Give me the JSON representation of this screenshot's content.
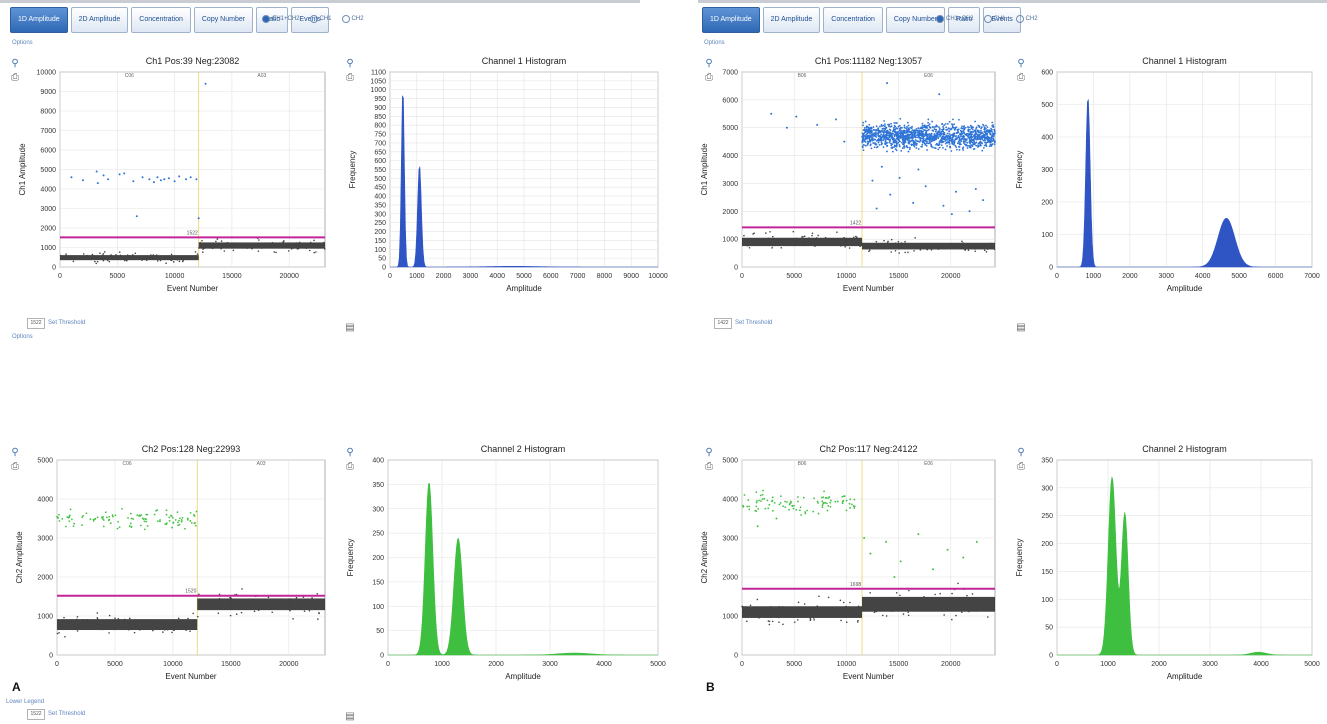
{
  "panels": [
    {
      "letter": "A",
      "tabs": [
        "1D Amplitude",
        "2D Amplitude",
        "Concentration",
        "Copy Number",
        "Ratio",
        "Events"
      ],
      "active_tab": 0,
      "channel_options": [
        "CH1+CH2",
        "CH1",
        "CH2"
      ],
      "options_link": "Options",
      "threshold_value": "1522",
      "threshold_button": "Set Threshold",
      "lower_links": [
        "Options",
        "Lower Legend"
      ]
    },
    {
      "letter": "B",
      "tabs": [
        "1D Amplitude",
        "2D Amplitude",
        "Concentration",
        "Copy Number",
        "Ratio",
        "Events"
      ],
      "active_tab": 0,
      "channel_options": [
        "CH1+CH2",
        "CH1",
        "CH2"
      ],
      "options_link": "Options",
      "threshold_value": "1422",
      "threshold_button": "Set Threshold",
      "lower_links": []
    }
  ],
  "chart_data": [
    {
      "id": "A-ch1-scatter",
      "type": "scatter",
      "title": "Ch1 Pos:39 Neg:23082",
      "xlabel": "Event Number",
      "ylabel": "Ch1 Amplitude",
      "xlim": [
        0,
        23121
      ],
      "ylim": [
        0,
        10000
      ],
      "xticks": [
        0,
        5000,
        10000,
        15000,
        20000
      ],
      "yticks": [
        0,
        1000,
        2000,
        3000,
        4000,
        5000,
        6000,
        7000,
        8000,
        9000,
        10000
      ],
      "well_labels": [
        "C06",
        "A03"
      ],
      "well_boundary": 12100,
      "threshold": 1522,
      "threshold_label": "1522",
      "series": [
        {
          "kind": "negative",
          "color": "#111111",
          "segments": [
            {
              "x": [
                0,
                12100
              ],
              "y_center": 480,
              "y_spread": 130
            },
            {
              "x": [
                12100,
                23121
              ],
              "y_center": 1100,
              "y_spread": 160
            }
          ]
        },
        {
          "kind": "positive",
          "color": "#2e74d6",
          "points": [
            [
              1000,
              4600
            ],
            [
              2000,
              4450
            ],
            [
              3200,
              4900
            ],
            [
              3800,
              4700
            ],
            [
              4200,
              4500
            ],
            [
              5200,
              4750
            ],
            [
              5600,
              4800
            ],
            [
              6400,
              4400
            ],
            [
              6700,
              2600
            ],
            [
              7800,
              4500
            ],
            [
              8200,
              4350
            ],
            [
              8500,
              4600
            ],
            [
              8800,
              4450
            ],
            [
              9500,
              4550
            ],
            [
              10000,
              4400
            ],
            [
              10400,
              4650
            ],
            [
              11000,
              4500
            ],
            [
              11400,
              4600
            ],
            [
              11900,
              4500
            ],
            [
              12100,
              2500
            ],
            [
              12700,
              9400
            ],
            [
              3300,
              4300
            ],
            [
              9100,
              4500
            ],
            [
              7200,
              4600
            ]
          ]
        }
      ]
    },
    {
      "id": "A-ch1-hist",
      "type": "area",
      "title": "Channel 1 Histogram",
      "xlabel": "Amplitude",
      "ylabel": "Frequency",
      "xlim": [
        0,
        10000
      ],
      "ylim": [
        0,
        1100
      ],
      "xticks": [
        0,
        1000,
        2000,
        3000,
        4000,
        5000,
        6000,
        7000,
        8000,
        9000,
        10000
      ],
      "yticks": [
        0,
        50,
        100,
        150,
        200,
        250,
        300,
        350,
        400,
        450,
        500,
        550,
        600,
        650,
        700,
        750,
        800,
        850,
        900,
        950,
        1000,
        1050,
        1100
      ],
      "color": "#2f55c5",
      "peaks": [
        {
          "center": 480,
          "height": 1020,
          "sigma": 55
        },
        {
          "center": 1100,
          "height": 580,
          "sigma": 70
        },
        {
          "center": 4600,
          "height": 4,
          "sigma": 900
        }
      ]
    },
    {
      "id": "A-ch2-scatter",
      "type": "scatter",
      "title": "Ch2 Pos:128 Neg:22993",
      "xlabel": "Event Number",
      "ylabel": "Ch2 Amplitude",
      "xlim": [
        0,
        23121
      ],
      "ylim": [
        0,
        5000
      ],
      "xticks": [
        0,
        5000,
        10000,
        15000,
        20000
      ],
      "yticks": [
        0,
        1000,
        2000,
        3000,
        4000,
        5000
      ],
      "well_labels": [
        "C06",
        "A03"
      ],
      "well_boundary": 12100,
      "threshold": 1520,
      "threshold_label": "1520",
      "series": [
        {
          "kind": "negative",
          "color": "#111111",
          "segments": [
            {
              "x": [
                0,
                12100
              ],
              "y_center": 780,
              "y_spread": 140
            },
            {
              "x": [
                12100,
                23121
              ],
              "y_center": 1300,
              "y_spread": 150
            }
          ]
        },
        {
          "kind": "positive",
          "color": "#44c244",
          "band": {
            "x": [
              0,
              12100
            ],
            "y_center": 3480,
            "y_spread": 170,
            "count": 110
          }
        }
      ]
    },
    {
      "id": "A-ch2-hist",
      "type": "area",
      "title": "Channel 2 Histogram",
      "xlabel": "Amplitude",
      "ylabel": "Frequency",
      "xlim": [
        0,
        5000
      ],
      "ylim": [
        0,
        400
      ],
      "xticks": [
        0,
        1000,
        2000,
        3000,
        4000,
        5000
      ],
      "yticks": [
        0,
        50,
        100,
        150,
        200,
        250,
        300,
        350,
        400
      ],
      "color": "#3fbf3f",
      "peaks": [
        {
          "center": 760,
          "height": 355,
          "sigma": 70
        },
        {
          "center": 1300,
          "height": 240,
          "sigma": 80
        },
        {
          "center": 3450,
          "height": 4,
          "sigma": 300
        }
      ]
    },
    {
      "id": "B-ch1-scatter",
      "type": "scatter",
      "title": "Ch1 Pos:11182 Neg:13057",
      "xlabel": "Event Number",
      "ylabel": "Ch1 Amplitude",
      "xlim": [
        0,
        24239
      ],
      "ylim": [
        0,
        7000
      ],
      "xticks": [
        0,
        5000,
        10000,
        15000,
        20000
      ],
      "yticks": [
        0,
        1000,
        2000,
        3000,
        4000,
        5000,
        6000,
        7000
      ],
      "well_labels": [
        "B06",
        "E06"
      ],
      "well_boundary": 11500,
      "threshold": 1422,
      "threshold_label": "1422",
      "series": [
        {
          "kind": "negative",
          "color": "#111111",
          "segments": [
            {
              "x": [
                0,
                11500
              ],
              "y_center": 900,
              "y_spread": 150
            },
            {
              "x": [
                11500,
                24239
              ],
              "y_center": 750,
              "y_spread": 120
            }
          ]
        },
        {
          "kind": "positive",
          "color": "#2e74d6",
          "band": {
            "x": [
              11500,
              24239
            ],
            "y_center": 4700,
            "y_spread": 300,
            "count": 1400
          }
        },
        {
          "kind": "positive",
          "color": "#2e74d6",
          "points": [
            [
              2800,
              5500
            ],
            [
              4300,
              5000
            ],
            [
              5200,
              5400
            ],
            [
              7200,
              5100
            ],
            [
              9000,
              5300
            ],
            [
              9800,
              4500
            ],
            [
              12500,
              3100
            ],
            [
              13400,
              3600
            ],
            [
              14200,
              2600
            ],
            [
              15100,
              3200
            ],
            [
              16400,
              2300
            ],
            [
              17600,
              2900
            ],
            [
              19300,
              2200
            ],
            [
              20500,
              2700
            ],
            [
              21800,
              2000
            ],
            [
              23100,
              2400
            ],
            [
              13900,
              6600
            ],
            [
              18900,
              6200
            ],
            [
              22400,
              2800
            ],
            [
              12900,
              2100
            ],
            [
              16900,
              3500
            ],
            [
              20100,
              1900
            ]
          ]
        }
      ]
    },
    {
      "id": "B-ch1-hist",
      "type": "area",
      "title": "Channel 1 Histogram",
      "xlabel": "Amplitude",
      "ylabel": "Frequency",
      "xlim": [
        0,
        7000
      ],
      "ylim": [
        0,
        600
      ],
      "xticks": [
        0,
        1000,
        2000,
        3000,
        4000,
        5000,
        6000,
        7000
      ],
      "yticks": [
        0,
        100,
        200,
        300,
        400,
        500,
        600
      ],
      "color": "#2f55c5",
      "peaks": [
        {
          "center": 850,
          "height": 525,
          "sigma": 60
        },
        {
          "center": 4650,
          "height": 150,
          "sigma": 230
        }
      ]
    },
    {
      "id": "B-ch2-scatter",
      "type": "scatter",
      "title": "Ch2 Pos:117 Neg:24122",
      "xlabel": "Event Number",
      "ylabel": "Ch2 Amplitude",
      "xlim": [
        0,
        24239
      ],
      "ylim": [
        0,
        5000
      ],
      "xticks": [
        0,
        5000,
        10000,
        15000,
        20000
      ],
      "yticks": [
        0,
        1000,
        2000,
        3000,
        4000,
        5000
      ],
      "well_labels": [
        "B06",
        "E06"
      ],
      "well_boundary": 11500,
      "threshold": 1698,
      "threshold_label": "1698",
      "series": [
        {
          "kind": "negative",
          "color": "#111111",
          "segments": [
            {
              "x": [
                0,
                11500
              ],
              "y_center": 1100,
              "y_spread": 150
            },
            {
              "x": [
                11500,
                24239
              ],
              "y_center": 1300,
              "y_spread": 190
            }
          ]
        },
        {
          "kind": "positive",
          "color": "#44c244",
          "band": {
            "x": [
              0,
              11500
            ],
            "y_center": 3900,
            "y_spread": 200,
            "count": 100
          }
        },
        {
          "kind": "positive",
          "color": "#44c244",
          "points": [
            [
              12300,
              2600
            ],
            [
              13800,
              2900
            ],
            [
              15200,
              2400
            ],
            [
              16900,
              3100
            ],
            [
              18300,
              2200
            ],
            [
              19700,
              2700
            ],
            [
              21200,
              2500
            ],
            [
              22500,
              2900
            ],
            [
              1500,
              3300
            ],
            [
              3300,
              3500
            ],
            [
              11700,
              3000
            ],
            [
              14600,
              2000
            ]
          ]
        }
      ]
    },
    {
      "id": "B-ch2-hist",
      "type": "area",
      "title": "Channel 2 Histogram",
      "xlabel": "Amplitude",
      "ylabel": "Frequency",
      "xlim": [
        0,
        5000
      ],
      "ylim": [
        0,
        350
      ],
      "xticks": [
        0,
        1000,
        2000,
        3000,
        4000,
        5000
      ],
      "yticks": [
        0,
        50,
        100,
        150,
        200,
        250,
        300,
        350
      ],
      "color": "#3fbf3f",
      "peaks": [
        {
          "center": 1080,
          "height": 320,
          "sigma": 75
        },
        {
          "center": 1330,
          "height": 255,
          "sigma": 65
        },
        {
          "center": 3950,
          "height": 5,
          "sigma": 150
        }
      ]
    }
  ]
}
